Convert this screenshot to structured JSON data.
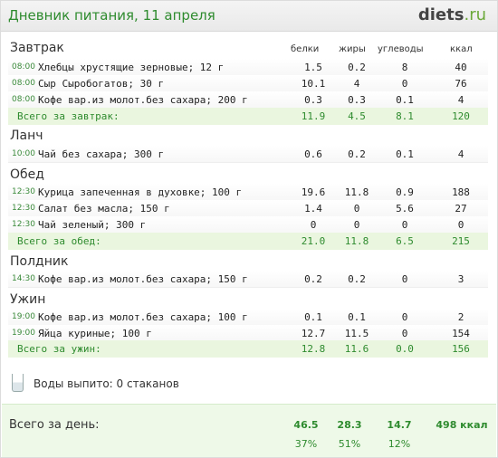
{
  "header": {
    "title": "Дневник питания, 11 апреля",
    "logo_main": "diets",
    "logo_suffix": ".ru"
  },
  "columns": {
    "protein": "белки",
    "fat": "жиры",
    "carbs": "углеводы",
    "kcal": "ккал"
  },
  "meals": [
    {
      "title": "Завтрак",
      "items": [
        {
          "time": "08:00",
          "name": "Хлебцы хрустящие зерновые; 12 г",
          "p": "1.5",
          "f": "0.2",
          "c": "8",
          "k": "40"
        },
        {
          "time": "08:00",
          "name": "Сыр Сыробогатов; 30 г",
          "p": "10.1",
          "f": "4",
          "c": "0",
          "k": "76"
        },
        {
          "time": "08:00",
          "name": "Кофе вар.из молот.без сахара; 200 г",
          "p": "0.3",
          "f": "0.3",
          "c": "0.1",
          "k": "4"
        }
      ],
      "total": {
        "label": "Всего за завтрак:",
        "p": "11.9",
        "f": "4.5",
        "c": "8.1",
        "k": "120"
      }
    },
    {
      "title": "Ланч",
      "items": [
        {
          "time": "10:00",
          "name": "Чай без сахара; 300 г",
          "p": "0.6",
          "f": "0.2",
          "c": "0.1",
          "k": "4"
        }
      ]
    },
    {
      "title": "Обед",
      "items": [
        {
          "time": "12:30",
          "name": "Курица запеченная в духовке; 100 г",
          "p": "19.6",
          "f": "11.8",
          "c": "0.9",
          "k": "188"
        },
        {
          "time": "12:30",
          "name": "Салат без масла; 150 г",
          "p": "1.4",
          "f": "0",
          "c": "5.6",
          "k": "27"
        },
        {
          "time": "12:30",
          "name": "Чай зеленый; 300 г",
          "p": "0",
          "f": "0",
          "c": "0",
          "k": "0"
        }
      ],
      "total": {
        "label": "Всего за обед:",
        "p": "21.0",
        "f": "11.8",
        "c": "6.5",
        "k": "215"
      }
    },
    {
      "title": "Полдник",
      "items": [
        {
          "time": "14:30",
          "name": "Кофе вар.из молот.без сахара; 150 г",
          "p": "0.2",
          "f": "0.2",
          "c": "0",
          "k": "3"
        }
      ]
    },
    {
      "title": "Ужин",
      "items": [
        {
          "time": "19:00",
          "name": "Кофе вар.из молот.без сахара; 100 г",
          "p": "0.1",
          "f": "0.1",
          "c": "0",
          "k": "2"
        },
        {
          "time": "19:00",
          "name": "Яйца куриные; 100 г",
          "p": "12.7",
          "f": "11.5",
          "c": "0",
          "k": "154"
        }
      ],
      "total": {
        "label": "Всего за ужин:",
        "p": "12.8",
        "f": "11.6",
        "c": "0.0",
        "k": "156"
      }
    }
  ],
  "water": {
    "text": "Воды выпито: 0 стаканов",
    "icon": "glass-icon"
  },
  "day_total": {
    "label": "Всего за день:",
    "p": "46.5",
    "f": "28.3",
    "c": "14.7",
    "k": "498 ккал",
    "p_pct": "37%",
    "f_pct": "51%",
    "c_pct": "12%"
  }
}
